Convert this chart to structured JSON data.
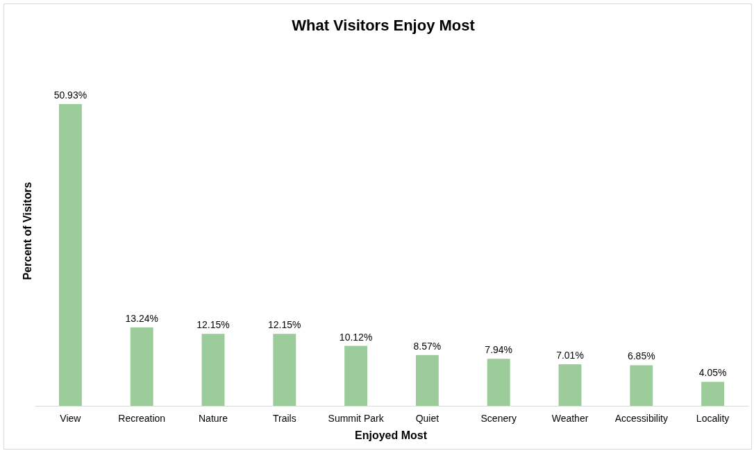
{
  "chart_data": {
    "type": "bar",
    "title": "What Visitors Enjoy Most",
    "xlabel": "Enjoyed Most",
    "ylabel": "Percent of Visitors",
    "categories": [
      "View",
      "Recreation",
      "Nature",
      "Trails",
      "Summit Park",
      "Quiet",
      "Scenery",
      "Weather",
      "Accessibility",
      "Locality"
    ],
    "values": [
      50.93,
      13.24,
      12.15,
      12.15,
      10.12,
      8.57,
      7.94,
      7.01,
      6.85,
      4.05
    ],
    "value_labels": [
      "50.93%",
      "13.24%",
      "12.15%",
      "12.15%",
      "10.12%",
      "8.57%",
      "7.94%",
      "7.01%",
      "6.85%",
      "4.05%"
    ],
    "color": "#9bcc99"
  }
}
